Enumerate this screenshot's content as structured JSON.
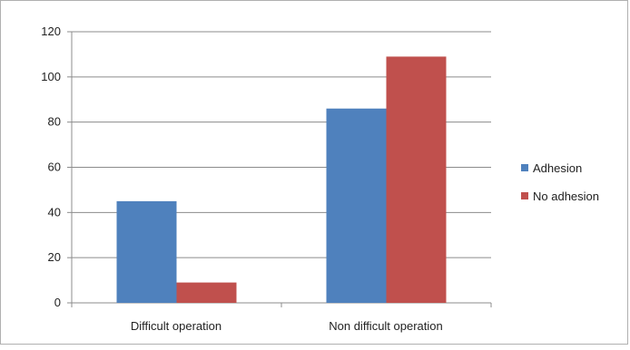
{
  "chart_data": {
    "type": "bar",
    "categories": [
      "Difficult operation",
      "Non difficult operation"
    ],
    "series": [
      {
        "name": "Adhesion",
        "values": [
          45,
          86
        ],
        "color": "#4F81BD"
      },
      {
        "name": "No adhesion",
        "values": [
          9,
          109
        ],
        "color": "#C0504D"
      }
    ],
    "title": "",
    "xlabel": "",
    "ylabel": "",
    "ylim": [
      0,
      120
    ],
    "yticks": [
      "0",
      "20",
      "40",
      "60",
      "80",
      "100",
      "120"
    ],
    "grid": true,
    "legend_position": "right"
  }
}
